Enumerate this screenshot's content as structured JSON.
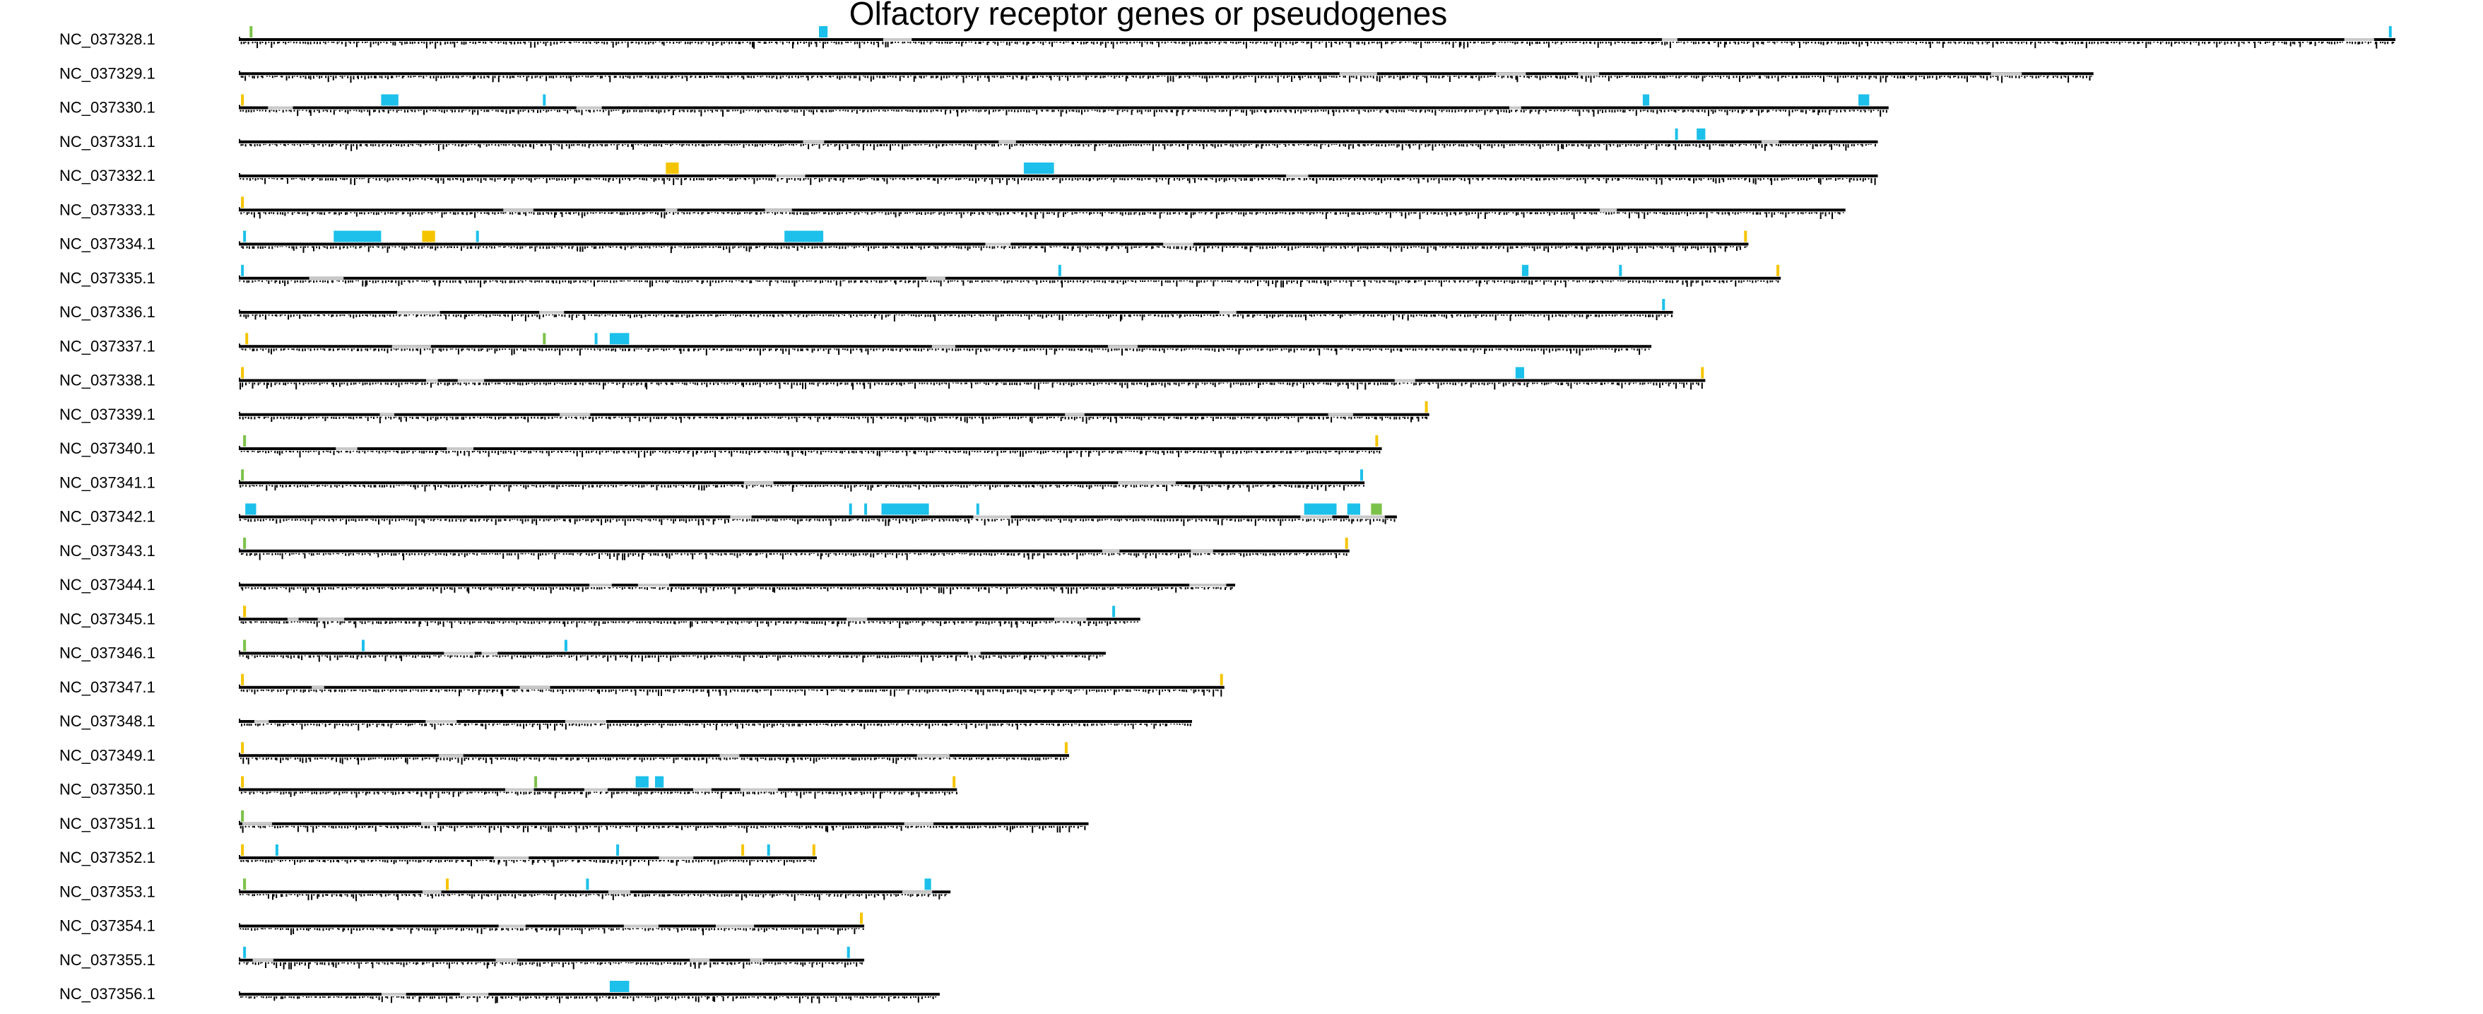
{
  "chart_data": {
    "type": "genome-track",
    "title": "Olfactory receptor genes or pseudogenes",
    "xlabel": "",
    "ylabel": "",
    "grid": false,
    "legend": "none",
    "colors": {
      "backbone": "#000000",
      "gap": "#c8c8c8",
      "gene": "#1cc0ea",
      "pseudogene": "#f5c400",
      "other": "#7cc24a"
    },
    "chromosomes": [
      {
        "name": "NC_037328.1",
        "length": 1.0,
        "marks": [
          {
            "pos": 0.005,
            "type": "other"
          },
          {
            "pos": 0.269,
            "type": "gene",
            "w": 0.004
          },
          {
            "pos": 0.997,
            "type": "gene"
          }
        ]
      },
      {
        "name": "NC_037329.1",
        "length": 0.86,
        "marks": []
      },
      {
        "name": "NC_037330.1",
        "length": 0.765,
        "marks": [
          {
            "pos": 0.001,
            "type": "pseudogene"
          },
          {
            "pos": 0.066,
            "type": "gene",
            "w": 0.008
          },
          {
            "pos": 0.141,
            "type": "gene"
          },
          {
            "pos": 0.651,
            "type": "gene",
            "w": 0.003
          },
          {
            "pos": 0.751,
            "type": "gene",
            "w": 0.005
          }
        ]
      },
      {
        "name": "NC_037331.1",
        "length": 0.76,
        "marks": [
          {
            "pos": 0.666,
            "type": "gene"
          },
          {
            "pos": 0.676,
            "type": "gene",
            "w": 0.004
          }
        ]
      },
      {
        "name": "NC_037332.1",
        "length": 0.76,
        "marks": [
          {
            "pos": 0.198,
            "type": "pseudogene",
            "w": 0.006
          },
          {
            "pos": 0.364,
            "type": "gene",
            "w": 0.014
          }
        ]
      },
      {
        "name": "NC_037333.1",
        "length": 0.745,
        "marks": [
          {
            "pos": 0.001,
            "type": "pseudogene"
          }
        ]
      },
      {
        "name": "NC_037334.1",
        "length": 0.7,
        "marks": [
          {
            "pos": 0.002,
            "type": "gene"
          },
          {
            "pos": 0.044,
            "type": "gene",
            "w": 0.022
          },
          {
            "pos": 0.085,
            "type": "pseudogene",
            "w": 0.006
          },
          {
            "pos": 0.11,
            "type": "gene"
          },
          {
            "pos": 0.253,
            "type": "gene",
            "w": 0.018
          },
          {
            "pos": 0.698,
            "type": "pseudogene"
          }
        ]
      },
      {
        "name": "NC_037335.1",
        "length": 0.715,
        "marks": [
          {
            "pos": 0.001,
            "type": "gene"
          },
          {
            "pos": 0.38,
            "type": "gene"
          },
          {
            "pos": 0.595,
            "type": "gene",
            "w": 0.003
          },
          {
            "pos": 0.64,
            "type": "gene"
          },
          {
            "pos": 0.713,
            "type": "pseudogene"
          }
        ]
      },
      {
        "name": "NC_037336.1",
        "length": 0.665,
        "marks": [
          {
            "pos": 0.66,
            "type": "gene"
          }
        ]
      },
      {
        "name": "NC_037337.1",
        "length": 0.655,
        "marks": [
          {
            "pos": 0.003,
            "type": "pseudogene"
          },
          {
            "pos": 0.141,
            "type": "other"
          },
          {
            "pos": 0.165,
            "type": "gene"
          },
          {
            "pos": 0.172,
            "type": "gene",
            "w": 0.009
          }
        ]
      },
      {
        "name": "NC_037338.1",
        "length": 0.68,
        "marks": [
          {
            "pos": 0.001,
            "type": "pseudogene"
          },
          {
            "pos": 0.592,
            "type": "gene",
            "w": 0.004
          },
          {
            "pos": 0.678,
            "type": "pseudogene"
          }
        ]
      },
      {
        "name": "NC_037339.1",
        "length": 0.552,
        "marks": [
          {
            "pos": 0.55,
            "type": "pseudogene"
          }
        ]
      },
      {
        "name": "NC_037340.1",
        "length": 0.53,
        "marks": [
          {
            "pos": 0.002,
            "type": "other"
          },
          {
            "pos": 0.527,
            "type": "pseudogene"
          }
        ]
      },
      {
        "name": "NC_037341.1",
        "length": 0.522,
        "marks": [
          {
            "pos": 0.001,
            "type": "other"
          },
          {
            "pos": 0.52,
            "type": "gene"
          }
        ]
      },
      {
        "name": "NC_037342.1",
        "length": 0.537,
        "marks": [
          {
            "pos": 0.003,
            "type": "gene",
            "w": 0.005
          },
          {
            "pos": 0.283,
            "type": "gene"
          },
          {
            "pos": 0.29,
            "type": "gene"
          },
          {
            "pos": 0.298,
            "type": "gene",
            "w": 0.022
          },
          {
            "pos": 0.342,
            "type": "gene"
          },
          {
            "pos": 0.494,
            "type": "gene",
            "w": 0.015
          },
          {
            "pos": 0.514,
            "type": "gene",
            "w": 0.006
          },
          {
            "pos": 0.525,
            "type": "other",
            "w": 0.005
          }
        ]
      },
      {
        "name": "NC_037343.1",
        "length": 0.515,
        "marks": [
          {
            "pos": 0.002,
            "type": "other"
          },
          {
            "pos": 0.513,
            "type": "pseudogene"
          }
        ]
      },
      {
        "name": "NC_037344.1",
        "length": 0.462,
        "marks": []
      },
      {
        "name": "NC_037345.1",
        "length": 0.418,
        "marks": [
          {
            "pos": 0.002,
            "type": "pseudogene"
          },
          {
            "pos": 0.405,
            "type": "gene"
          }
        ]
      },
      {
        "name": "NC_037346.1",
        "length": 0.402,
        "marks": [
          {
            "pos": 0.002,
            "type": "other"
          },
          {
            "pos": 0.057,
            "type": "gene"
          },
          {
            "pos": 0.151,
            "type": "gene"
          }
        ]
      },
      {
        "name": "NC_037347.1",
        "length": 0.457,
        "marks": [
          {
            "pos": 0.001,
            "type": "pseudogene"
          },
          {
            "pos": 0.455,
            "type": "pseudogene"
          }
        ]
      },
      {
        "name": "NC_037348.1",
        "length": 0.442,
        "marks": []
      },
      {
        "name": "NC_037349.1",
        "length": 0.385,
        "marks": [
          {
            "pos": 0.001,
            "type": "pseudogene"
          },
          {
            "pos": 0.383,
            "type": "pseudogene"
          }
        ]
      },
      {
        "name": "NC_037350.1",
        "length": 0.333,
        "marks": [
          {
            "pos": 0.001,
            "type": "pseudogene"
          },
          {
            "pos": 0.137,
            "type": "other"
          },
          {
            "pos": 0.184,
            "type": "gene",
            "w": 0.006
          },
          {
            "pos": 0.193,
            "type": "gene",
            "w": 0.004
          },
          {
            "pos": 0.331,
            "type": "pseudogene"
          }
        ]
      },
      {
        "name": "NC_037351.1",
        "length": 0.394,
        "marks": [
          {
            "pos": 0.001,
            "type": "other"
          }
        ]
      },
      {
        "name": "NC_037352.1",
        "length": 0.268,
        "marks": [
          {
            "pos": 0.001,
            "type": "pseudogene"
          },
          {
            "pos": 0.017,
            "type": "gene"
          },
          {
            "pos": 0.175,
            "type": "gene"
          },
          {
            "pos": 0.233,
            "type": "pseudogene"
          },
          {
            "pos": 0.245,
            "type": "gene"
          },
          {
            "pos": 0.266,
            "type": "pseudogene"
          }
        ]
      },
      {
        "name": "NC_037353.1",
        "length": 0.33,
        "marks": [
          {
            "pos": 0.002,
            "type": "other"
          },
          {
            "pos": 0.096,
            "type": "pseudogene"
          },
          {
            "pos": 0.161,
            "type": "gene"
          },
          {
            "pos": 0.318,
            "type": "gene",
            "w": 0.003
          }
        ]
      },
      {
        "name": "NC_037354.1",
        "length": 0.29,
        "marks": [
          {
            "pos": 0.288,
            "type": "pseudogene"
          }
        ]
      },
      {
        "name": "NC_037355.1",
        "length": 0.29,
        "marks": [
          {
            "pos": 0.002,
            "type": "gene"
          },
          {
            "pos": 0.282,
            "type": "gene"
          }
        ]
      },
      {
        "name": "NC_037356.1",
        "length": 0.325,
        "marks": [
          {
            "pos": 0.172,
            "type": "gene",
            "w": 0.009
          }
        ]
      }
    ]
  }
}
